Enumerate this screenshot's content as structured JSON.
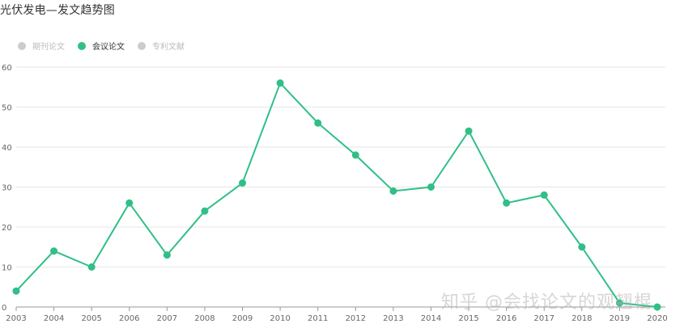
{
  "title": "光伏发电—发文趋势图",
  "legend": [
    {
      "label": "期刊论文",
      "color": "#cccccc",
      "active": false
    },
    {
      "label": "会议论文",
      "color": "#2fbf87",
      "active": true
    },
    {
      "label": "专利文献",
      "color": "#cccccc",
      "active": false
    }
  ],
  "watermark": "知乎 @会找论文的观翘棍",
  "chart_data": {
    "type": "line",
    "title": "光伏发电—发文趋势图",
    "xlabel": "",
    "ylabel": "",
    "x": [
      "2003",
      "2004",
      "2005",
      "2006",
      "2007",
      "2008",
      "2009",
      "2010",
      "2011",
      "2012",
      "2013",
      "2014",
      "2015",
      "2016",
      "2017",
      "2018",
      "2019",
      "2020"
    ],
    "yticks": [
      0,
      10,
      20,
      30,
      40,
      50,
      60
    ],
    "ylim": [
      0,
      60
    ],
    "grid": true,
    "legend_position": "top-left",
    "series": [
      {
        "name": "会议论文",
        "color": "#2fbf87",
        "values": [
          4,
          14,
          10,
          26,
          13,
          24,
          31,
          56,
          46,
          38,
          29,
          30,
          44,
          26,
          28,
          15,
          1,
          0
        ]
      }
    ]
  }
}
